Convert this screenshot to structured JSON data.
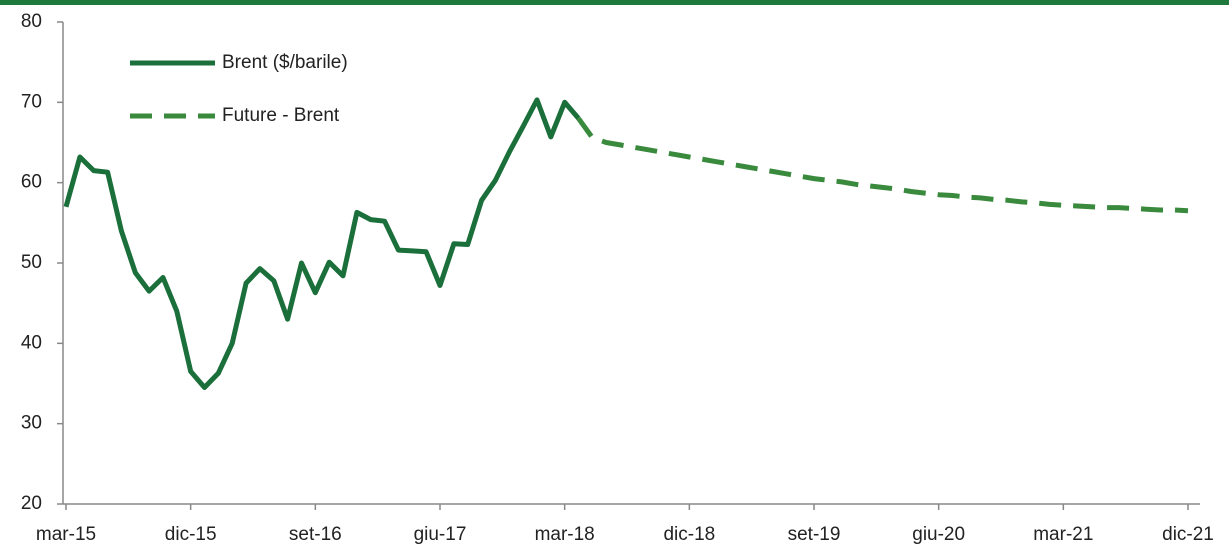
{
  "chart_data": {
    "type": "line",
    "categories": [
      "mar-15",
      null,
      null,
      null,
      null,
      null,
      null,
      null,
      null,
      "dic-15",
      null,
      null,
      null,
      null,
      null,
      null,
      null,
      null,
      "set-16",
      null,
      null,
      null,
      null,
      null,
      null,
      null,
      null,
      "giu-17",
      null,
      null,
      null,
      null,
      null,
      null,
      null,
      null,
      "mar-18",
      null,
      null,
      null,
      null,
      null,
      null,
      null,
      null,
      "dic-18",
      null,
      null,
      null,
      null,
      null,
      null,
      null,
      null,
      "set-19",
      null,
      null,
      null,
      null,
      null,
      null,
      null,
      null,
      "giu-20",
      null,
      null,
      null,
      null,
      null,
      null,
      null,
      null,
      "mar-21",
      null,
      null,
      null,
      null,
      null,
      null,
      null,
      null,
      "dic-21"
    ],
    "series": [
      {
        "name": "Brent ($/barile)",
        "color": "#1b6f3a",
        "dashed": false,
        "values": [
          57,
          63.2,
          61.5,
          61.3,
          54,
          48.8,
          46.5,
          48.2,
          44,
          36.5,
          34.5,
          36.3,
          40,
          47.5,
          49.3,
          47.8,
          43,
          50,
          46.3,
          50.1,
          48.4,
          56.3,
          55.4,
          55.2,
          51.6,
          51.5,
          51.4,
          47.2,
          52.4,
          52.3,
          57.8,
          60.3,
          63.8,
          67,
          70.3,
          65.7,
          70,
          68,
          null,
          null,
          null,
          null,
          null,
          null,
          null,
          null,
          null,
          null,
          null,
          null,
          null,
          null,
          null,
          null,
          null,
          null,
          null,
          null,
          null,
          null,
          null,
          null,
          null,
          null,
          null,
          null,
          null,
          null,
          null,
          null,
          null,
          null,
          null,
          null,
          null,
          null,
          null,
          null,
          null,
          null,
          null,
          null
        ]
      },
      {
        "name": "Future - Brent",
        "color": "#3a8a3e",
        "dashed": true,
        "values": [
          null,
          null,
          null,
          null,
          null,
          null,
          null,
          null,
          null,
          null,
          null,
          null,
          null,
          null,
          null,
          null,
          null,
          null,
          null,
          null,
          null,
          null,
          null,
          null,
          null,
          null,
          null,
          null,
          null,
          null,
          null,
          null,
          null,
          null,
          null,
          null,
          null,
          68,
          65.6,
          65,
          64.7,
          64.4,
          64.1,
          63.8,
          63.5,
          63.2,
          62.9,
          62.6,
          62.3,
          62,
          61.7,
          61.4,
          61.1,
          60.8,
          60.5,
          60.3,
          60.1,
          59.8,
          59.6,
          59.4,
          59.2,
          58.9,
          58.7,
          58.5,
          58.4,
          58.2,
          58.1,
          57.9,
          57.8,
          57.6,
          57.5,
          57.3,
          57.2,
          57.1,
          57,
          56.9,
          56.9,
          56.8,
          56.7,
          56.6,
          56.6,
          56.5
        ]
      }
    ],
    "ylim": [
      20,
      80
    ],
    "yticks": [
      20,
      30,
      40,
      50,
      60,
      70,
      80
    ],
    "legend": "upper left"
  }
}
